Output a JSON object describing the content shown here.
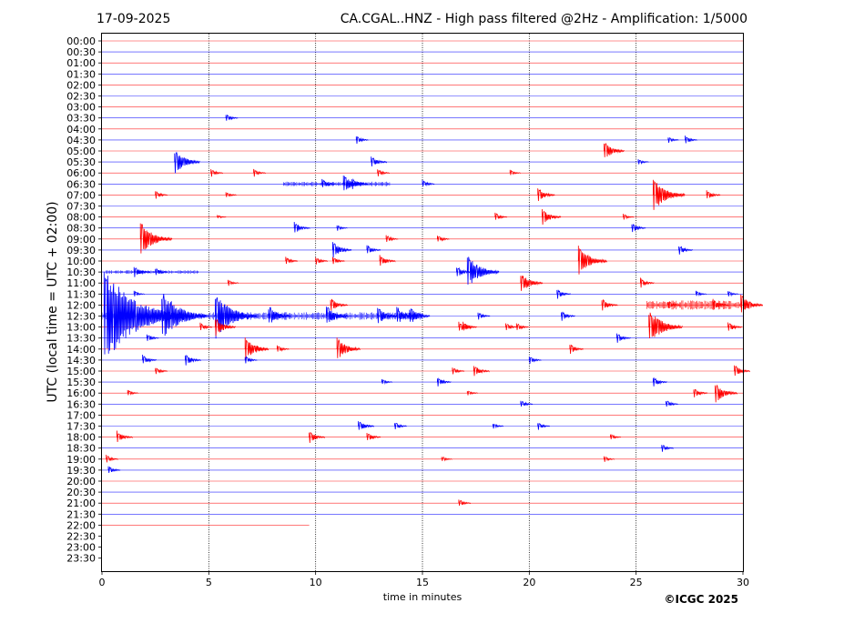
{
  "header": {
    "date": "17-09-2025",
    "title": "CA.CGAL..HNZ - High pass filtered @2Hz - Amplification: 1/5000"
  },
  "footer": {
    "copyright": "©ICGC 2025"
  },
  "colors": {
    "red": "#ff0000",
    "blue": "#0000ff",
    "grid": "#000000",
    "background": "#ffffff"
  },
  "chart_data": {
    "type": "line",
    "description_kind": "helicorder",
    "xlabel": "time in minutes",
    "ylabel": "UTC (local time = UTC + 02:00)",
    "xlim": [
      0,
      30
    ],
    "xticks": [
      0,
      5,
      10,
      15,
      20,
      25,
      30
    ],
    "vertical_gridlines_at": [
      5,
      10,
      15,
      20,
      25
    ],
    "row_labels": [
      "00:00",
      "00:30",
      "01:00",
      "01:30",
      "02:00",
      "02:30",
      "03:00",
      "03:30",
      "04:00",
      "04:30",
      "05:00",
      "05:30",
      "06:00",
      "06:30",
      "07:00",
      "07:30",
      "08:00",
      "08:30",
      "09:00",
      "09:30",
      "10:00",
      "10:30",
      "11:00",
      "11:30",
      "12:00",
      "12:30",
      "13:00",
      "13:30",
      "14:00",
      "14:30",
      "15:00",
      "15:30",
      "16:00",
      "16:30",
      "17:00",
      "17:30",
      "18:00",
      "18:30",
      "19:00",
      "19:30",
      "20:00",
      "20:30",
      "21:00",
      "21:30",
      "22:00",
      "22:30",
      "23:00",
      "23:30"
    ],
    "row_colors": [
      "red",
      "blue"
    ],
    "trace_end_minute_row_22_00": 9.7,
    "events": [
      {
        "row": "03:30",
        "t": 5.8,
        "amp": 0.4
      },
      {
        "row": "04:30",
        "t": 11.9,
        "amp": 0.4
      },
      {
        "row": "04:30",
        "t": 26.5,
        "amp": 0.3
      },
      {
        "row": "04:30",
        "t": 27.3,
        "amp": 0.4
      },
      {
        "row": "05:00",
        "t": 23.5,
        "amp": 0.9
      },
      {
        "row": "05:30",
        "t": 3.4,
        "amp": 1.2
      },
      {
        "row": "05:30",
        "t": 12.6,
        "amp": 0.6
      },
      {
        "row": "05:30",
        "t": 25.1,
        "amp": 0.3
      },
      {
        "row": "06:00",
        "t": 5.1,
        "amp": 0.4
      },
      {
        "row": "06:00",
        "t": 7.1,
        "amp": 0.4
      },
      {
        "row": "06:00",
        "t": 12.9,
        "amp": 0.4
      },
      {
        "row": "06:00",
        "t": 19.1,
        "amp": 0.3
      },
      {
        "row": "06:30",
        "t": 10.3,
        "amp": 0.5
      },
      {
        "row": "06:30",
        "t": 11.3,
        "amp": 0.9
      },
      {
        "row": "06:30",
        "t": 11.7,
        "amp": 0.6
      },
      {
        "row": "06:30",
        "t": 15.0,
        "amp": 0.4
      },
      {
        "row": "07:00",
        "t": 2.5,
        "amp": 0.4
      },
      {
        "row": "07:00",
        "t": 5.8,
        "amp": 0.3
      },
      {
        "row": "07:00",
        "t": 20.4,
        "amp": 0.7
      },
      {
        "row": "07:00",
        "t": 25.8,
        "amp": 1.6
      },
      {
        "row": "07:00",
        "t": 28.3,
        "amp": 0.5
      },
      {
        "row": "08:00",
        "t": 5.4,
        "amp": 0.2
      },
      {
        "row": "08:00",
        "t": 18.4,
        "amp": 0.4
      },
      {
        "row": "08:00",
        "t": 20.6,
        "amp": 0.8
      },
      {
        "row": "08:00",
        "t": 24.4,
        "amp": 0.3
      },
      {
        "row": "08:30",
        "t": 9.0,
        "amp": 0.6
      },
      {
        "row": "08:30",
        "t": 11.0,
        "amp": 0.3
      },
      {
        "row": "08:30",
        "t": 24.8,
        "amp": 0.5
      },
      {
        "row": "09:00",
        "t": 1.8,
        "amp": 1.6
      },
      {
        "row": "09:00",
        "t": 13.3,
        "amp": 0.4
      },
      {
        "row": "09:00",
        "t": 15.7,
        "amp": 0.4
      },
      {
        "row": "09:30",
        "t": 10.8,
        "amp": 0.8
      },
      {
        "row": "09:30",
        "t": 12.4,
        "amp": 0.5
      },
      {
        "row": "09:30",
        "t": 27.0,
        "amp": 0.5
      },
      {
        "row": "10:00",
        "t": 8.6,
        "amp": 0.4
      },
      {
        "row": "10:00",
        "t": 10.0,
        "amp": 0.4
      },
      {
        "row": "10:00",
        "t": 10.8,
        "amp": 0.4
      },
      {
        "row": "10:00",
        "t": 13.0,
        "amp": 0.6
      },
      {
        "row": "10:00",
        "t": 22.3,
        "amp": 1.4
      },
      {
        "row": "10:30",
        "t": 1.5,
        "amp": 0.6
      },
      {
        "row": "10:30",
        "t": 2.5,
        "amp": 0.4
      },
      {
        "row": "10:30",
        "t": 16.6,
        "amp": 0.6
      },
      {
        "row": "10:30",
        "t": 17.1,
        "amp": 1.6
      },
      {
        "row": "11:00",
        "t": 5.9,
        "amp": 0.3
      },
      {
        "row": "11:00",
        "t": 19.6,
        "amp": 1.0
      },
      {
        "row": "11:00",
        "t": 25.2,
        "amp": 0.5
      },
      {
        "row": "11:30",
        "t": 1.5,
        "amp": 0.3
      },
      {
        "row": "11:30",
        "t": 21.3,
        "amp": 0.5
      },
      {
        "row": "11:30",
        "t": 27.8,
        "amp": 0.3
      },
      {
        "row": "11:30",
        "t": 29.3,
        "amp": 0.3
      },
      {
        "row": "12:00",
        "t": 10.7,
        "amp": 0.7
      },
      {
        "row": "12:00",
        "t": 23.4,
        "amp": 0.6
      },
      {
        "row": "12:00",
        "t": 26.5,
        "amp": 0.4
      },
      {
        "row": "12:00",
        "t": 28.6,
        "amp": 0.6
      },
      {
        "row": "12:00",
        "t": 29.9,
        "amp": 1.0
      },
      {
        "row": "12:30",
        "t": 0.1,
        "amp": 4.5
      },
      {
        "row": "12:30",
        "t": 2.8,
        "amp": 2.4
      },
      {
        "row": "12:30",
        "t": 5.3,
        "amp": 2.2
      },
      {
        "row": "12:30",
        "t": 7.8,
        "amp": 1.0
      },
      {
        "row": "12:30",
        "t": 10.5,
        "amp": 1.0
      },
      {
        "row": "12:30",
        "t": 12.9,
        "amp": 0.9
      },
      {
        "row": "12:30",
        "t": 13.8,
        "amp": 0.9
      },
      {
        "row": "12:30",
        "t": 14.4,
        "amp": 0.9
      },
      {
        "row": "12:30",
        "t": 17.6,
        "amp": 0.4
      },
      {
        "row": "12:30",
        "t": 21.5,
        "amp": 0.5
      },
      {
        "row": "13:00",
        "t": 4.6,
        "amp": 0.4
      },
      {
        "row": "13:00",
        "t": 5.3,
        "amp": 0.9
      },
      {
        "row": "13:00",
        "t": 16.7,
        "amp": 0.5
      },
      {
        "row": "13:00",
        "t": 16.9,
        "amp": 0.5
      },
      {
        "row": "13:00",
        "t": 18.9,
        "amp": 0.4
      },
      {
        "row": "13:00",
        "t": 19.4,
        "amp": 0.4
      },
      {
        "row": "13:00",
        "t": 25.6,
        "amp": 1.7
      },
      {
        "row": "13:00",
        "t": 29.3,
        "amp": 0.5
      },
      {
        "row": "13:30",
        "t": 2.1,
        "amp": 0.4
      },
      {
        "row": "13:30",
        "t": 24.1,
        "amp": 0.5
      },
      {
        "row": "14:00",
        "t": 6.7,
        "amp": 1.1
      },
      {
        "row": "14:00",
        "t": 7.2,
        "amp": 0.4
      },
      {
        "row": "14:00",
        "t": 8.2,
        "amp": 0.4
      },
      {
        "row": "14:00",
        "t": 11.0,
        "amp": 1.1
      },
      {
        "row": "14:00",
        "t": 21.9,
        "amp": 0.5
      },
      {
        "row": "14:30",
        "t": 1.9,
        "amp": 0.5
      },
      {
        "row": "14:30",
        "t": 3.9,
        "amp": 0.6
      },
      {
        "row": "14:30",
        "t": 6.7,
        "amp": 0.4
      },
      {
        "row": "14:30",
        "t": 20.0,
        "amp": 0.4
      },
      {
        "row": "15:00",
        "t": 2.5,
        "amp": 0.4
      },
      {
        "row": "15:00",
        "t": 16.4,
        "amp": 0.4
      },
      {
        "row": "15:00",
        "t": 17.4,
        "amp": 0.6
      },
      {
        "row": "15:00",
        "t": 29.6,
        "amp": 0.6
      },
      {
        "row": "15:30",
        "t": 13.1,
        "amp": 0.3
      },
      {
        "row": "15:30",
        "t": 15.7,
        "amp": 0.5
      },
      {
        "row": "15:30",
        "t": 25.8,
        "amp": 0.5
      },
      {
        "row": "16:00",
        "t": 1.2,
        "amp": 0.3
      },
      {
        "row": "16:00",
        "t": 17.1,
        "amp": 0.3
      },
      {
        "row": "16:00",
        "t": 27.7,
        "amp": 0.5
      },
      {
        "row": "16:00",
        "t": 28.7,
        "amp": 1.0
      },
      {
        "row": "16:30",
        "t": 19.6,
        "amp": 0.4
      },
      {
        "row": "16:30",
        "t": 26.4,
        "amp": 0.4
      },
      {
        "row": "17:30",
        "t": 12.0,
        "amp": 0.6
      },
      {
        "row": "17:30",
        "t": 13.7,
        "amp": 0.4
      },
      {
        "row": "17:30",
        "t": 18.3,
        "amp": 0.3
      },
      {
        "row": "17:30",
        "t": 20.4,
        "amp": 0.4
      },
      {
        "row": "18:00",
        "t": 0.7,
        "amp": 0.6
      },
      {
        "row": "18:00",
        "t": 9.7,
        "amp": 0.6
      },
      {
        "row": "18:00",
        "t": 12.4,
        "amp": 0.5
      },
      {
        "row": "18:00",
        "t": 23.8,
        "amp": 0.3
      },
      {
        "row": "18:30",
        "t": 26.2,
        "amp": 0.4
      },
      {
        "row": "19:00",
        "t": 0.2,
        "amp": 0.4
      },
      {
        "row": "19:00",
        "t": 15.9,
        "amp": 0.3
      },
      {
        "row": "19:00",
        "t": 23.5,
        "amp": 0.3
      },
      {
        "row": "19:30",
        "t": 0.3,
        "amp": 0.4
      },
      {
        "row": "21:00",
        "t": 16.7,
        "amp": 0.4
      }
    ],
    "continuous_activity": [
      {
        "row": "06:30",
        "from": 8.5,
        "to": 13.5,
        "level": 0.15
      },
      {
        "row": "10:30",
        "from": 0.2,
        "to": 4.5,
        "level": 0.12
      },
      {
        "row": "12:00",
        "from": 25.5,
        "to": 30.0,
        "level": 0.3
      },
      {
        "row": "12:30",
        "from": 0.0,
        "to": 15.0,
        "level": 0.25
      }
    ]
  }
}
